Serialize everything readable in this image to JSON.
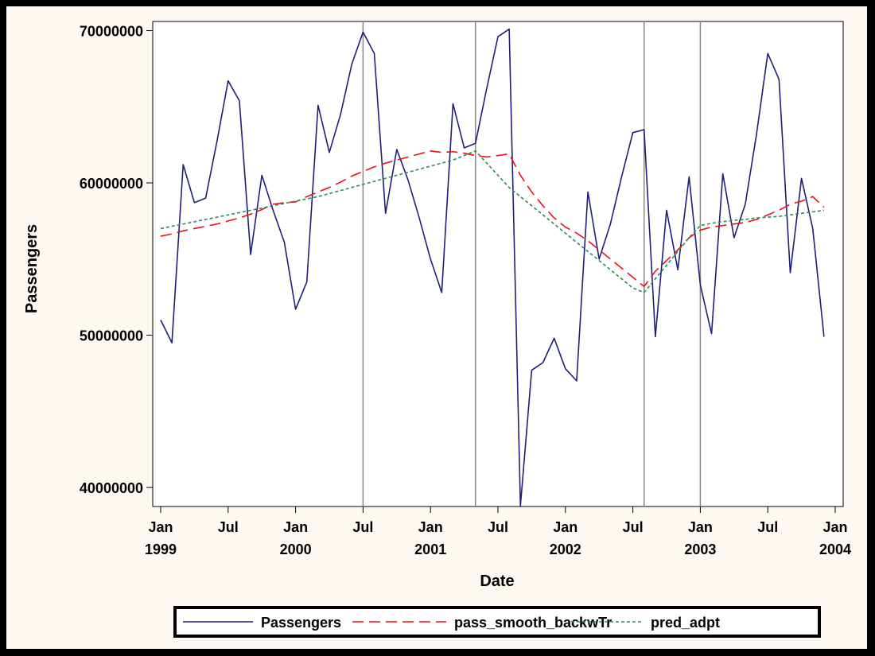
{
  "chart_data": {
    "type": "line",
    "xlabel": "Date",
    "ylabel": "Passengers",
    "xlim": [
      "1999-01",
      "2004-01"
    ],
    "ylim": [
      38750000,
      70600000
    ],
    "y_ticks": [
      {
        "value": 40000000,
        "label": "40000000"
      },
      {
        "value": 50000000,
        "label": "50000000"
      },
      {
        "value": 60000000,
        "label": "60000000"
      },
      {
        "value": 70000000,
        "label": "70000000"
      }
    ],
    "x_ticks": [
      {
        "date": "1999-01",
        "month": "Jan",
        "year": "1999"
      },
      {
        "date": "1999-07",
        "month": "Jul",
        "year": ""
      },
      {
        "date": "2000-01",
        "month": "Jan",
        "year": "2000"
      },
      {
        "date": "2000-07",
        "month": "Jul",
        "year": ""
      },
      {
        "date": "2001-01",
        "month": "Jan",
        "year": "2001"
      },
      {
        "date": "2001-07",
        "month": "Jul",
        "year": ""
      },
      {
        "date": "2002-01",
        "month": "Jan",
        "year": "2002"
      },
      {
        "date": "2002-07",
        "month": "Jul",
        "year": ""
      },
      {
        "date": "2003-01",
        "month": "Jan",
        "year": "2003"
      },
      {
        "date": "2003-07",
        "month": "Jul",
        "year": ""
      },
      {
        "date": "2004-01",
        "month": "Jan",
        "year": "2004"
      }
    ],
    "reference_lines": [
      "2000-07",
      "2001-05",
      "2002-08",
      "2003-01"
    ],
    "legend_position": "bottom",
    "x": [
      "1999-01",
      "1999-02",
      "1999-03",
      "1999-04",
      "1999-05",
      "1999-06",
      "1999-07",
      "1999-08",
      "1999-09",
      "1999-10",
      "1999-11",
      "1999-12",
      "2000-01",
      "2000-02",
      "2000-03",
      "2000-04",
      "2000-05",
      "2000-06",
      "2000-07",
      "2000-08",
      "2000-09",
      "2000-10",
      "2000-11",
      "2000-12",
      "2001-01",
      "2001-02",
      "2001-03",
      "2001-04",
      "2001-05",
      "2001-06",
      "2001-07",
      "2001-08",
      "2001-09",
      "2001-10",
      "2001-11",
      "2001-12",
      "2002-01",
      "2002-02",
      "2002-03",
      "2002-04",
      "2002-05",
      "2002-06",
      "2002-07",
      "2002-08",
      "2002-09",
      "2002-10",
      "2002-11",
      "2002-12",
      "2003-01",
      "2003-02",
      "2003-03",
      "2003-04",
      "2003-05",
      "2003-06",
      "2003-07",
      "2003-08",
      "2003-09",
      "2003-10",
      "2003-11",
      "2003-12"
    ],
    "series": [
      {
        "name": "Passengers",
        "color": "#1f1f7a",
        "dash": "solid",
        "values": [
          51000000,
          49500000,
          61200000,
          58700000,
          59000000,
          62700000,
          66700000,
          65400000,
          55300000,
          60500000,
          58200000,
          56100000,
          51700000,
          53500000,
          65100000,
          62000000,
          64500000,
          67800000,
          69900000,
          68500000,
          58000000,
          62200000,
          60200000,
          57700000,
          55000000,
          52800000,
          65200000,
          62300000,
          62600000,
          66200000,
          69600000,
          70100000,
          38800000,
          47700000,
          48200000,
          49800000,
          47800000,
          47000000,
          59400000,
          55000000,
          57300000,
          60400000,
          63300000,
          63500000,
          49900000,
          58200000,
          54300000,
          60400000,
          53300000,
          50100000,
          60600000,
          56400000,
          58600000,
          63200000,
          68500000,
          66800000,
          54100000,
          60300000,
          57000000,
          49900000
        ]
      },
      {
        "name": "pass_smooth_backwTr",
        "color": "#e8101a",
        "dash": "long-dash",
        "values": [
          56500000,
          56650000,
          56850000,
          57000000,
          57150000,
          57300000,
          57500000,
          57700000,
          57950000,
          58250000,
          58600000,
          58700000,
          58750000,
          59100000,
          59400000,
          59700000,
          60050000,
          60450000,
          60750000,
          61050000,
          61300000,
          61500000,
          61700000,
          61900000,
          62100000,
          62000000,
          62050000,
          61950000,
          61800000,
          61700000,
          61800000,
          61900000,
          60500000,
          59400000,
          58500000,
          57700000,
          57100000,
          56700000,
          56200000,
          55600000,
          55000000,
          54400000,
          53800000,
          53200000,
          54200000,
          54900000,
          55600000,
          56400000,
          56900000,
          57100000,
          57200000,
          57300000,
          57400000,
          57600000,
          57900000,
          58200000,
          58600000,
          58800000,
          59100000,
          58400000
        ]
      },
      {
        "name": "pred_adpt",
        "color": "#2e8b57",
        "dash": "short-dash",
        "values": [
          57000000,
          57150000,
          57300000,
          57450000,
          57600000,
          57750000,
          57900000,
          58050000,
          58200000,
          58350000,
          58500000,
          58650000,
          58800000,
          58950000,
          59100000,
          59300000,
          59500000,
          59700000,
          59900000,
          60100000,
          60300000,
          60500000,
          60700000,
          60900000,
          61100000,
          61300000,
          61500000,
          61800000,
          62100000,
          61300000,
          60500000,
          59700000,
          59100000,
          58500000,
          57900000,
          57300000,
          56700000,
          56100000,
          55500000,
          54900000,
          54300000,
          53700000,
          53100000,
          52800000,
          53700000,
          54600000,
          55500000,
          56400000,
          57200000,
          57350000,
          57450000,
          57550000,
          57600000,
          57700000,
          57750000,
          57800000,
          57900000,
          58000000,
          58100000,
          58200000
        ]
      }
    ]
  }
}
